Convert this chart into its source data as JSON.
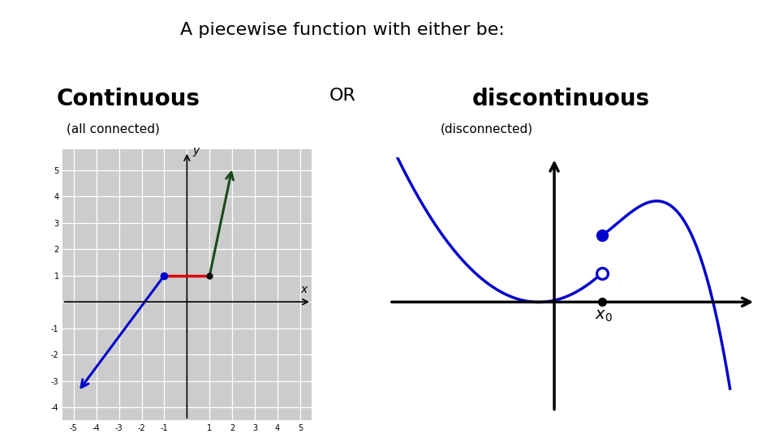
{
  "title": "A piecewise function with either be:",
  "continuous_label": "Continuous",
  "or_label": "OR",
  "discontinuous_label": "discontinuous",
  "all_connected_label": "(all connected)",
  "disconnected_label": "(disconnected)",
  "bg_color": "#ffffff",
  "graph_bg_color": "#cccccc",
  "blue_color": "#0000cc",
  "red_color": "#dd0000",
  "dark_green_color": "#1a4a1a",
  "black_color": "#000000",
  "title_fontsize": 16,
  "label_fontsize": 20,
  "or_fontsize": 16,
  "sublabel_fontsize": 11,
  "tick_fontsize": 7
}
